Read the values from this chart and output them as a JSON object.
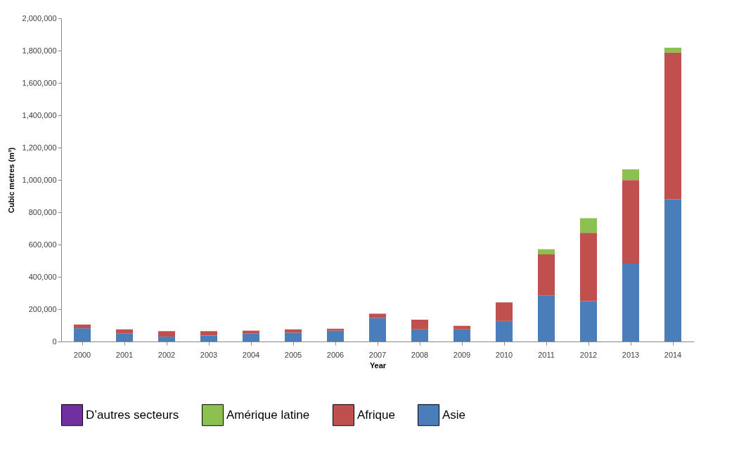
{
  "chart_data": {
    "type": "bar",
    "stacked": true,
    "xlabel": "Year",
    "ylabel": "Cubic metres (m³)",
    "categories": [
      "2000",
      "2001",
      "2002",
      "2003",
      "2004",
      "2005",
      "2006",
      "2007",
      "2008",
      "2009",
      "2010",
      "2011",
      "2012",
      "2013",
      "2014"
    ],
    "series": [
      {
        "name": "Asie",
        "color": "#4a7ebb",
        "values": [
          82000,
          49000,
          30000,
          37000,
          49000,
          55000,
          67000,
          145000,
          75000,
          75000,
          127000,
          284000,
          250000,
          483000,
          880000
        ]
      },
      {
        "name": "Afrique",
        "color": "#c0504d",
        "values": [
          23000,
          26000,
          34000,
          27000,
          18000,
          20000,
          12000,
          27000,
          60000,
          22000,
          115000,
          255000,
          423000,
          516000,
          908000
        ]
      },
      {
        "name": "Amérique latine",
        "color": "#8cc152",
        "values": [
          0,
          0,
          0,
          0,
          0,
          0,
          0,
          0,
          0,
          0,
          0,
          32000,
          90000,
          66000,
          30000
        ]
      },
      {
        "name": "D’autres secteurs",
        "color": "#7030a0",
        "values": [
          0,
          0,
          0,
          0,
          0,
          0,
          0,
          0,
          0,
          0,
          0,
          0,
          0,
          0,
          0
        ]
      }
    ],
    "ylim": [
      0,
      2000000
    ],
    "yticks": [
      0,
      {
        "value": 200000,
        "label": "200,000"
      },
      {
        "value": 400000,
        "label": "400,000"
      },
      {
        "value": 600000,
        "label": "600,000"
      },
      {
        "value": 800000,
        "label": "800,000"
      },
      {
        "value": 1000000,
        "label": "1,000,000"
      },
      {
        "value": 1200000,
        "label": "1,200,000"
      },
      {
        "value": 1400000,
        "label": "1,400,000"
      },
      {
        "value": 1600000,
        "label": "1,600,000"
      },
      {
        "value": 1800000,
        "label": "1,800,000"
      },
      {
        "value": 2000000,
        "label": "2,000,000"
      }
    ],
    "grid": false,
    "legend": "bottom"
  }
}
